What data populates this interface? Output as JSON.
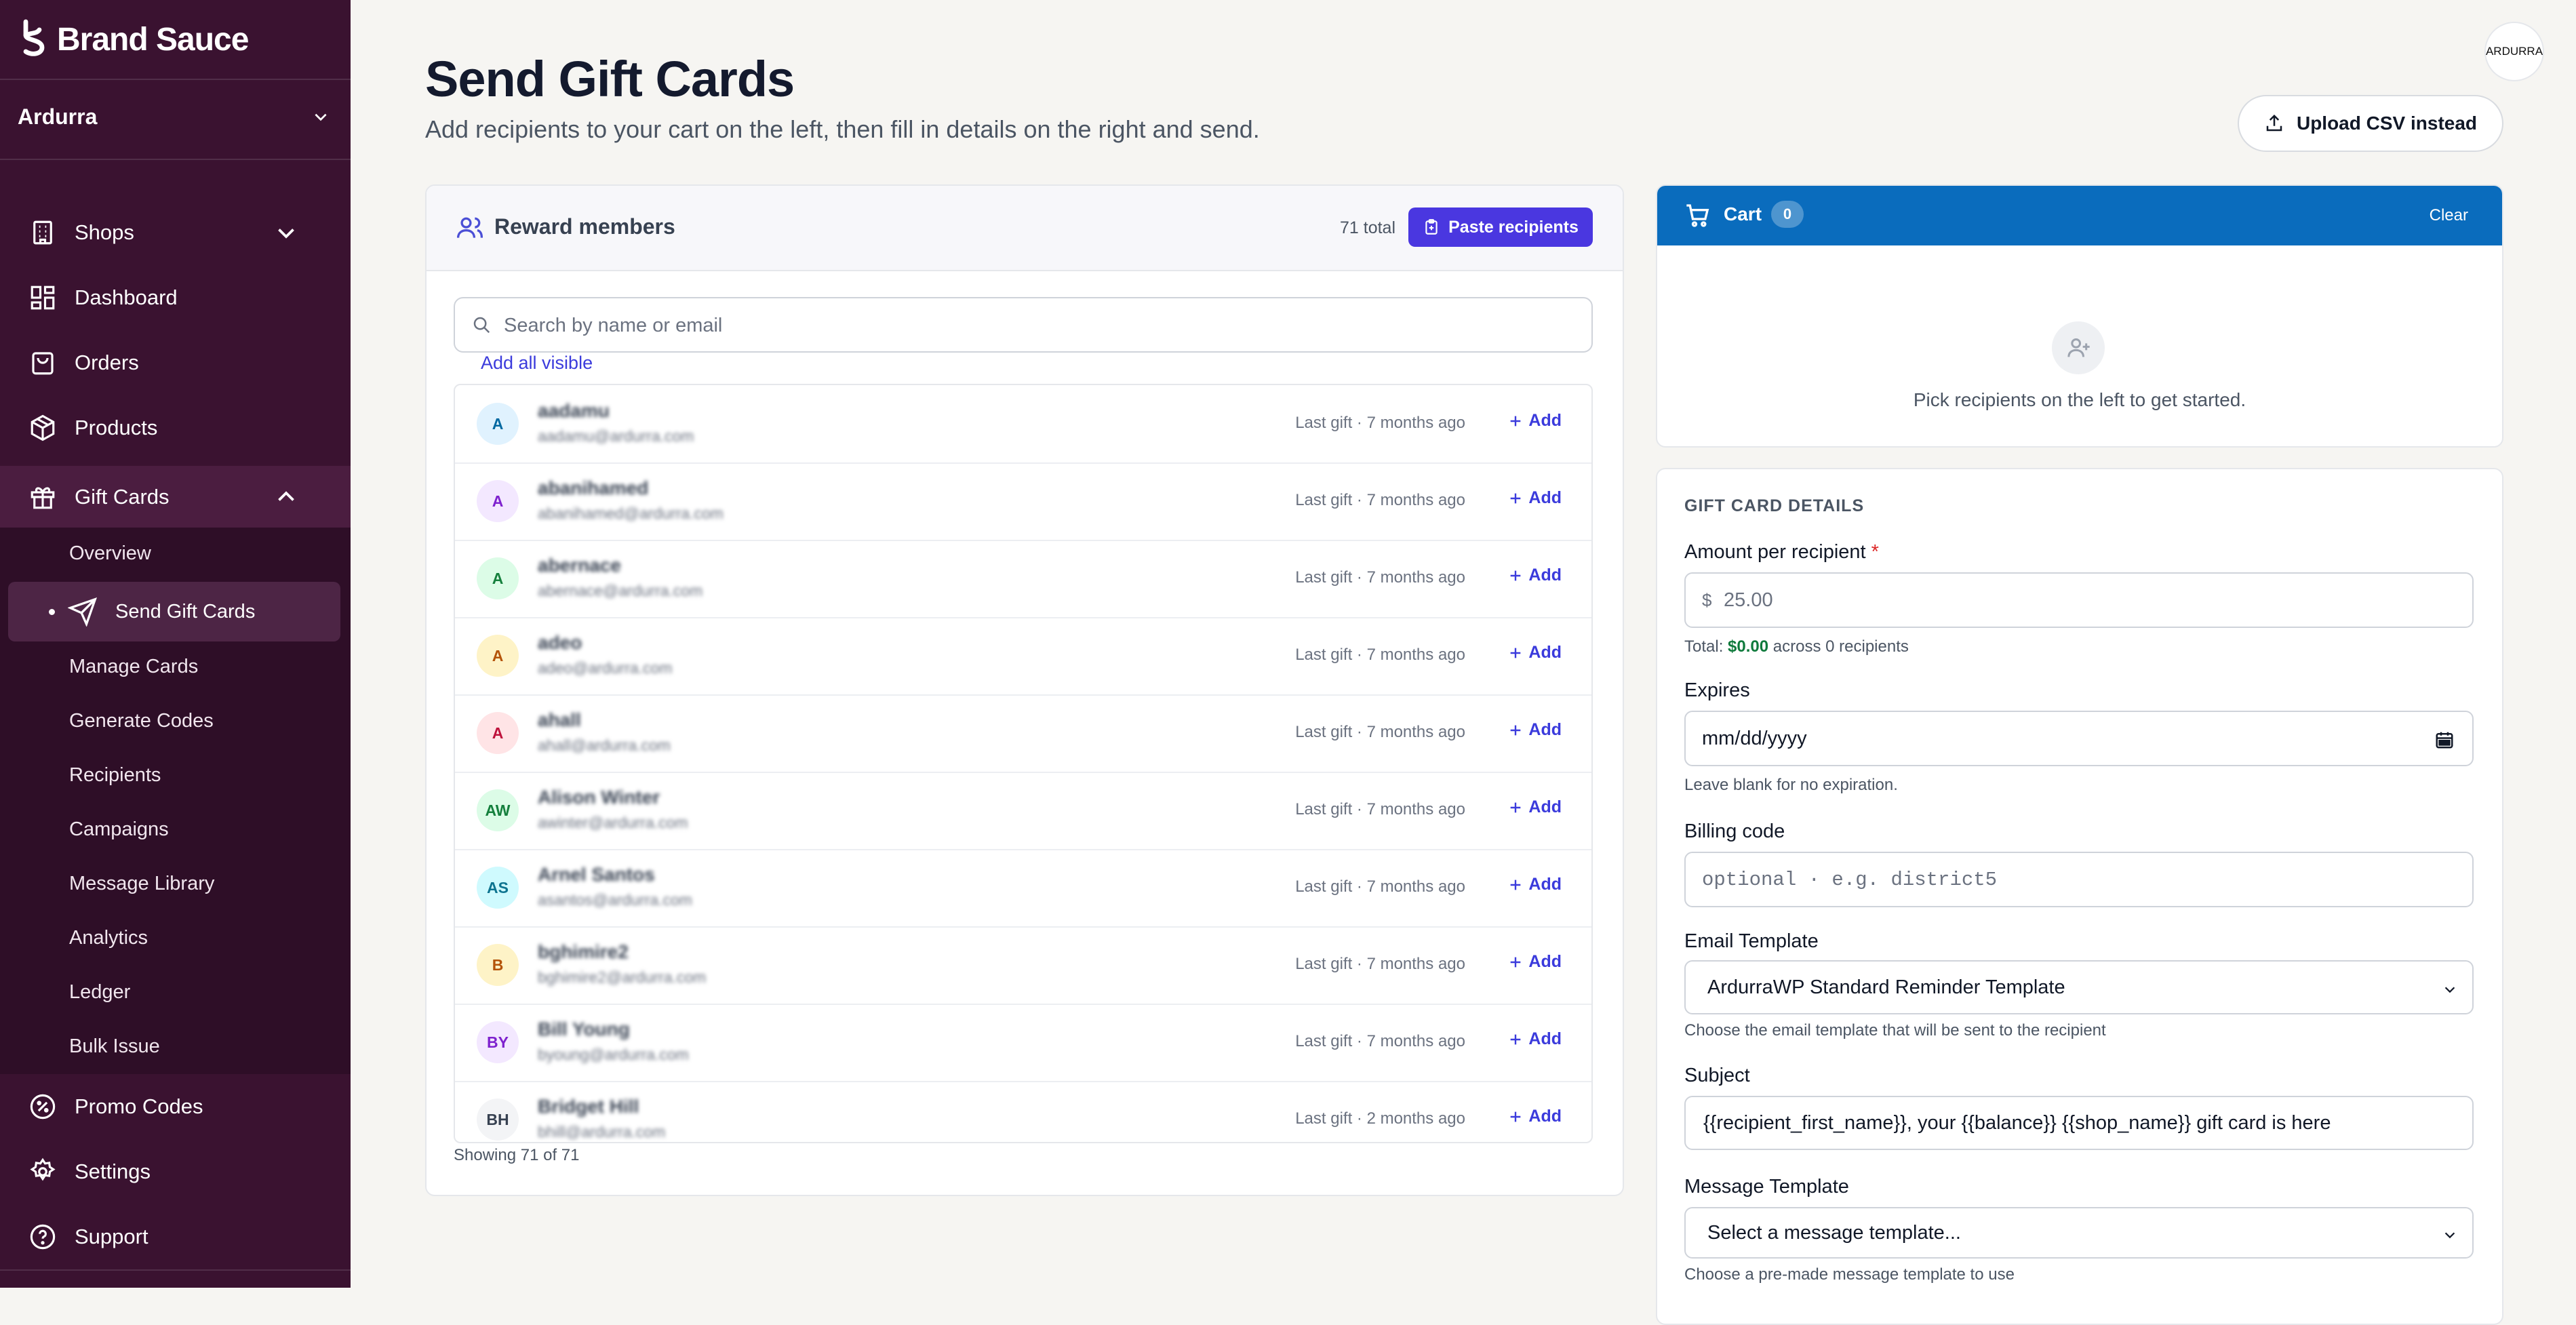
{
  "brand": {
    "name": "Brand Sauce"
  },
  "org": {
    "name": "Ardurra"
  },
  "nav": {
    "shops": "Shops",
    "dashboard": "Dashboard",
    "orders": "Orders",
    "products": "Products",
    "gift_cards": "Gift Cards",
    "promo_codes": "Promo Codes",
    "settings": "Settings",
    "support": "Support"
  },
  "gift_cards_sub": {
    "overview": "Overview",
    "send": "Send Gift Cards",
    "manage": "Manage Cards",
    "generate": "Generate Codes",
    "recipients": "Recipients",
    "campaigns": "Campaigns",
    "message_library": "Message Library",
    "analytics": "Analytics",
    "ledger": "Ledger",
    "bulk_issue": "Bulk Issue"
  },
  "header": {
    "title": "Send Gift Cards",
    "subtitle": "Add recipients to your cart on the left, then fill in details on the right and send.",
    "avatar_text": "ARDURRA",
    "upload_label": "Upload CSV instead"
  },
  "members": {
    "title": "Reward members",
    "total": "71 total",
    "paste_label": "Paste recipients",
    "search_placeholder": "Search by name or email",
    "add_all_visible": "Add all visible",
    "showing": "Showing 71 of 71",
    "add_label": "Add",
    "rows": [
      {
        "initials": "A",
        "name": "aadamu",
        "email": "aadamu@ardurra.com",
        "last_gift": "Last gift · 7 months ago",
        "bg": "#e0f2fe",
        "fg": "#0369a1"
      },
      {
        "initials": "A",
        "name": "abanihamed",
        "email": "abanihamed@ardurra.com",
        "last_gift": "Last gift · 7 months ago",
        "bg": "#f3e8ff",
        "fg": "#7e22ce"
      },
      {
        "initials": "A",
        "name": "abernace",
        "email": "abernace@ardurra.com",
        "last_gift": "Last gift · 7 months ago",
        "bg": "#dcfce7",
        "fg": "#15803d"
      },
      {
        "initials": "A",
        "name": "adeo",
        "email": "adeo@ardurra.com",
        "last_gift": "Last gift · 7 months ago",
        "bg": "#fef3c7",
        "fg": "#b45309"
      },
      {
        "initials": "A",
        "name": "ahall",
        "email": "ahall@ardurra.com",
        "last_gift": "Last gift · 7 months ago",
        "bg": "#ffe4e6",
        "fg": "#be123c"
      },
      {
        "initials": "AW",
        "name": "Alison Winter",
        "email": "awinter@ardurra.com",
        "last_gift": "Last gift · 7 months ago",
        "bg": "#dcfce7",
        "fg": "#15803d"
      },
      {
        "initials": "AS",
        "name": "Arnel Santos",
        "email": "asantos@ardurra.com",
        "last_gift": "Last gift · 7 months ago",
        "bg": "#cffafe",
        "fg": "#0e7490"
      },
      {
        "initials": "B",
        "name": "bghimire2",
        "email": "bghimire2@ardurra.com",
        "last_gift": "Last gift · 7 months ago",
        "bg": "#fef3c7",
        "fg": "#b45309"
      },
      {
        "initials": "BY",
        "name": "Bill Young",
        "email": "byoung@ardurra.com",
        "last_gift": "Last gift · 7 months ago",
        "bg": "#f3e8ff",
        "fg": "#7e22ce"
      },
      {
        "initials": "BH",
        "name": "Bridget Hill",
        "email": "bhill@ardurra.com",
        "last_gift": "Last gift · 2 months ago",
        "bg": "#f3f4f6",
        "fg": "#374151"
      }
    ]
  },
  "cart": {
    "title": "Cart",
    "count": "0",
    "clear": "Clear",
    "empty_text": "Pick recipients on the left to get started."
  },
  "details": {
    "section_title": "GIFT CARD DETAILS",
    "amount_label": "Amount per recipient",
    "required_mark": "*",
    "currency": "$",
    "amount_value": "25.00",
    "total_prefix": "Total:",
    "total_amount": "$0.00",
    "total_suffix": "across 0 recipients",
    "expires_label": "Expires",
    "expires_placeholder": "mm/dd/yyyy",
    "expires_hint": "Leave blank for no expiration.",
    "billing_label": "Billing code",
    "billing_placeholder": "optional · e.g. district5",
    "email_template_label": "Email Template",
    "email_template_value": "ArdurraWP Standard Reminder Template",
    "email_template_hint": "Choose the email template that will be sent to the recipient",
    "subject_label": "Subject",
    "subject_value": "{{recipient_first_name}}, your {{balance}} {{shop_name}} gift card is here",
    "message_template_label": "Message Template",
    "message_template_value": "Select a message template...",
    "message_template_hint": "Choose a pre-made message template to use"
  }
}
